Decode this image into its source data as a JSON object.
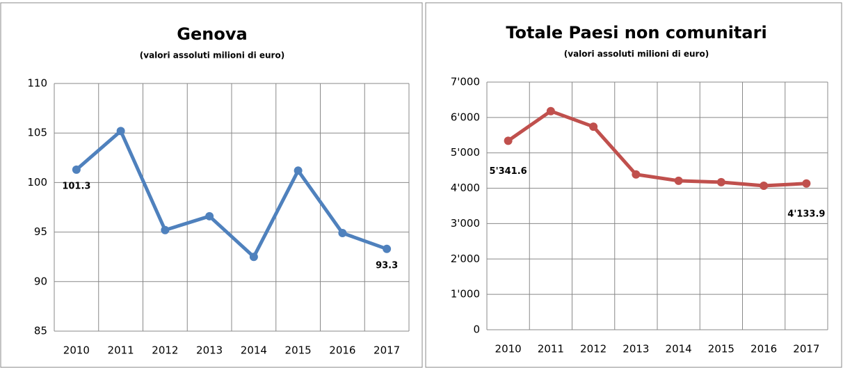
{
  "chart_data": [
    {
      "type": "line",
      "title": "Genova",
      "subtitle": "(valori assoluti milioni di euro)",
      "categories": [
        "2010",
        "2011",
        "2012",
        "2013",
        "2014",
        "2015",
        "2016",
        "2017"
      ],
      "series": [
        {
          "color": "#4f81bd",
          "values": [
            101.3,
            105.2,
            95.2,
            96.6,
            92.5,
            101.2,
            94.9,
            93.3
          ]
        }
      ],
      "ylim": [
        85,
        110
      ],
      "yticks": [
        85,
        90,
        95,
        100,
        105,
        110
      ],
      "grid": true
    },
    {
      "type": "line",
      "title": "Totale Paesi non comunitari",
      "subtitle": "(valori assoluti milioni di euro)",
      "categories": [
        "2010",
        "2011",
        "2012",
        "2013",
        "2014",
        "2015",
        "2016",
        "2017"
      ],
      "series": [
        {
          "color": "#c0504d",
          "values": [
            5341.6,
            6180,
            5740,
            4390,
            4210,
            4170,
            4070,
            4133.9
          ],
          "value_labels": [
            "5'341.6",
            null,
            null,
            null,
            null,
            null,
            null,
            "4'133.9"
          ]
        }
      ],
      "ylim": [
        0,
        7000
      ],
      "yticks": [
        0,
        {
          "value": 1000,
          "label": "1'000"
        },
        {
          "value": 2000,
          "label": "2'000"
        },
        {
          "value": 3000,
          "label": "3'000"
        },
        {
          "value": 4000,
          "label": "4'000"
        },
        {
          "value": 5000,
          "label": "5'000"
        },
        {
          "value": 6000,
          "label": "6'000"
        },
        {
          "value": 7000,
          "label": "7'000"
        }
      ],
      "grid": true
    }
  ]
}
